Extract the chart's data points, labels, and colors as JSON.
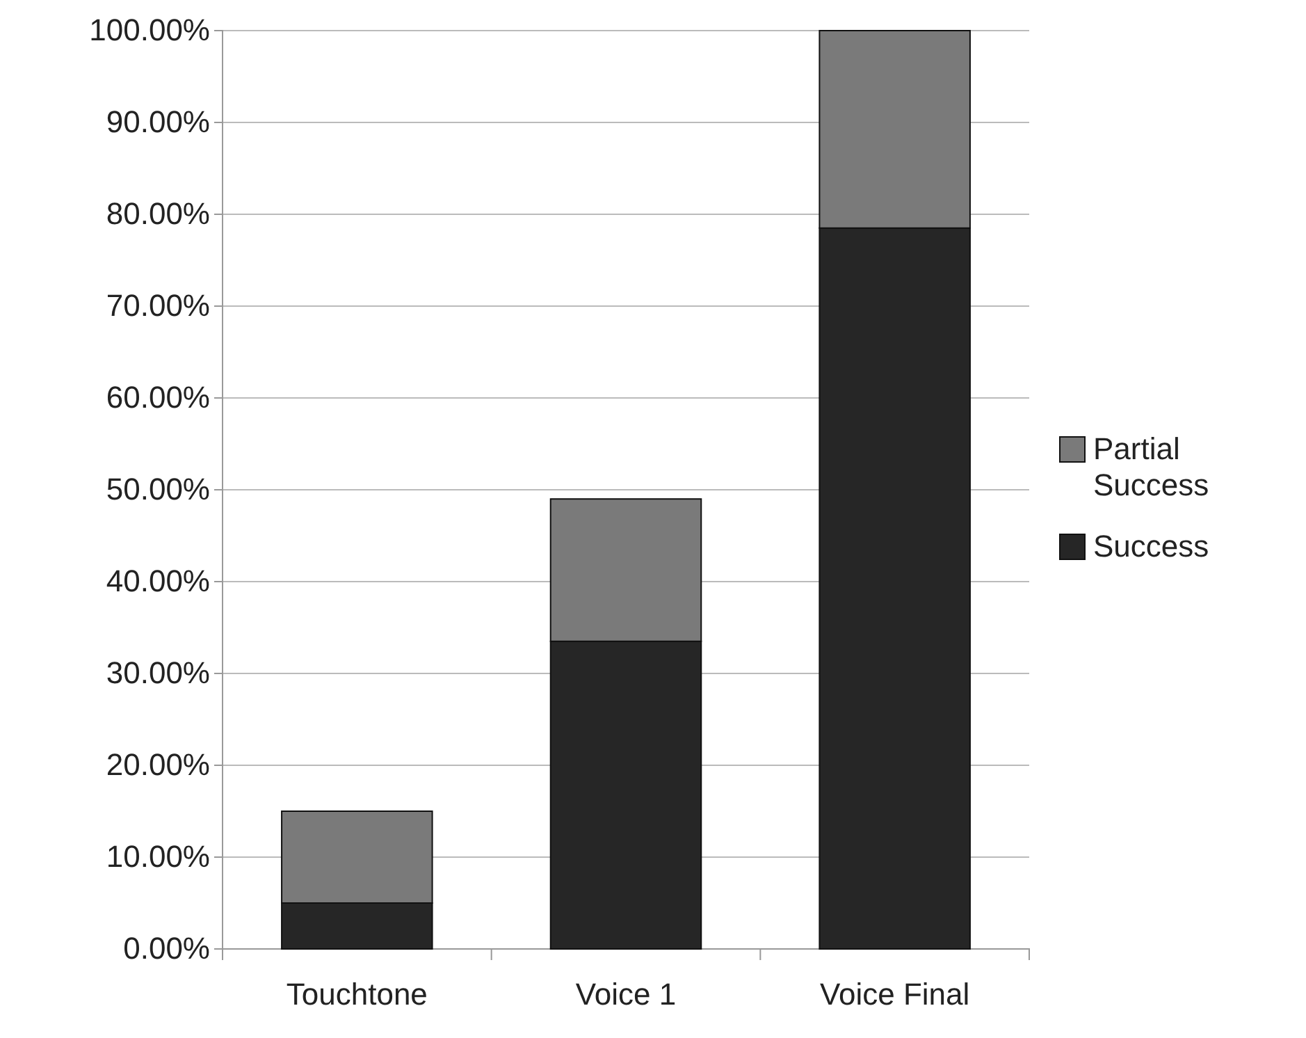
{
  "chart_data": {
    "type": "bar",
    "stacked": true,
    "categories": [
      "Touchtone",
      "Voice 1",
      "Voice Final"
    ],
    "series": [
      {
        "name": "Success",
        "color": "#262626",
        "values": [
          5,
          33.5,
          78.5
        ]
      },
      {
        "name": "Partial Success",
        "color": "#7a7a7a",
        "values": [
          10,
          15.5,
          21.5
        ]
      }
    ],
    "ylim": [
      0,
      100
    ],
    "yticks": [
      {
        "value": 0,
        "label": "0.00%"
      },
      {
        "value": 10,
        "label": "10.00%"
      },
      {
        "value": 20,
        "label": "20.00%"
      },
      {
        "value": 30,
        "label": "30.00%"
      },
      {
        "value": 40,
        "label": "40.00%"
      },
      {
        "value": 50,
        "label": "50.00%"
      },
      {
        "value": 60,
        "label": "60.00%"
      },
      {
        "value": 70,
        "label": "70.00%"
      },
      {
        "value": 80,
        "label": "80.00%"
      },
      {
        "value": 90,
        "label": "90.00%"
      },
      {
        "value": 100,
        "label": "100.00%"
      }
    ],
    "grid": "y",
    "legend": "right"
  }
}
